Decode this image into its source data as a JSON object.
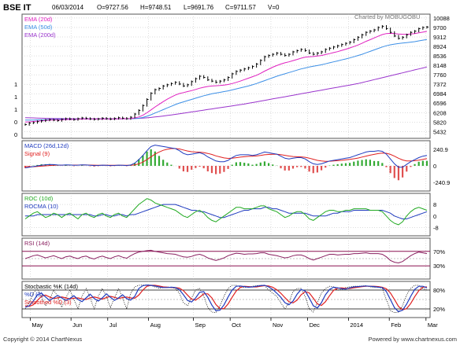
{
  "header": {
    "symbol": "BSE IT",
    "date": "06/03/2014",
    "open": "O=9727.56",
    "high": "H=9748.51",
    "low": "L=9691.76",
    "close": "C=9711.57",
    "volume": "V=0",
    "watermark": "Charted by MOBUGOBU"
  },
  "footer": {
    "copyright": "Copyright © 2014 ChartNexus",
    "powered": "Powered by www.chartnexus.com"
  },
  "colors": {
    "price": "#000000",
    "ema20": "#e020c0",
    "ema50": "#3c8fe6",
    "ema200": "#9933cc",
    "macd": "#1f3bbf",
    "signal": "#e02020",
    "hist_up": "#33aa33",
    "hist_down": "#e05050",
    "roc": "#22aa22",
    "rocma": "#1f3bbf",
    "rsi": "#8a2060",
    "stoch_k": "#000000",
    "stoch_pd": "#1f3bbf",
    "stoch_sd": "#e02020",
    "band_line": "#8a1050",
    "grid": "#bbbbbb",
    "frame": "#555555"
  },
  "x_axis": {
    "labels": [
      "May",
      "Jun",
      "Jul",
      "Aug",
      "Sep",
      "Oct",
      "Nov",
      "Dec",
      "2014",
      "Feb",
      "Mar"
    ],
    "label_positions": [
      0.02,
      0.12,
      0.21,
      0.31,
      0.42,
      0.51,
      0.61,
      0.7,
      0.8,
      0.9,
      0.99
    ]
  },
  "chart_data": [
    {
      "type": "line",
      "panel": "price",
      "legend": [
        "EMA (20d)",
        "EMA (50d)",
        "EMA (200d)"
      ],
      "y_tick_labels": [
        "10088",
        "9700",
        "9312",
        "8924",
        "8536",
        "8148",
        "7760",
        "7372",
        "6984",
        "6596",
        "6208",
        "5820",
        "5432"
      ],
      "left_tick_labels": [
        "1",
        "1",
        "1",
        "0",
        "0"
      ],
      "ylim": [
        5250,
        10150
      ],
      "price_close": [
        5720,
        5780,
        5800,
        5840,
        5870,
        5900,
        5920,
        5900,
        5880,
        5930,
        5960,
        5940,
        5920,
        5960,
        5990,
        5970,
        5950,
        5930,
        5950,
        5980,
        5960,
        5940,
        5970,
        6000,
        5980,
        5960,
        6020,
        6150,
        6300,
        6500,
        6750,
        7000,
        7150,
        7200,
        7300,
        7350,
        7400,
        7450,
        7380,
        7300,
        7350,
        7480,
        7600,
        7700,
        7650,
        7550,
        7500,
        7450,
        7500,
        7550,
        7650,
        7800,
        7900,
        7950,
        8000,
        8050,
        8100,
        8200,
        8350,
        8500,
        8550,
        8600,
        8650,
        8600,
        8550,
        8600,
        8700,
        8750,
        8800,
        8750,
        8650,
        8600,
        8650,
        8700,
        8800,
        8850,
        8900,
        8950,
        9000,
        9050,
        9100,
        9200,
        9300,
        9400,
        9500,
        9550,
        9600,
        9700,
        9750,
        9650,
        9500,
        9350,
        9250,
        9300,
        9400,
        9500,
        9550,
        9650,
        9700,
        9720
      ],
      "ema20": [
        5820,
        5830,
        5845,
        5860,
        5875,
        5890,
        5905,
        5910,
        5910,
        5915,
        5925,
        5930,
        5930,
        5935,
        5945,
        5950,
        5950,
        5948,
        5948,
        5952,
        5952,
        5950,
        5952,
        5957,
        5960,
        5960,
        5966,
        5990,
        6030,
        6100,
        6200,
        6320,
        6440,
        6550,
        6660,
        6760,
        6850,
        6930,
        6990,
        7030,
        7070,
        7110,
        7160,
        7210,
        7250,
        7280,
        7300,
        7310,
        7320,
        7340,
        7360,
        7400,
        7450,
        7500,
        7560,
        7620,
        7680,
        7740,
        7820,
        7910,
        7990,
        8070,
        8140,
        8200,
        8250,
        8290,
        8340,
        8390,
        8440,
        8480,
        8500,
        8510,
        8530,
        8550,
        8590,
        8630,
        8670,
        8710,
        8760,
        8810,
        8860,
        8920,
        8980,
        9050,
        9130,
        9200,
        9270,
        9340,
        9410,
        9450,
        9460,
        9450,
        9430,
        9420,
        9420,
        9430,
        9450,
        9480,
        9510,
        9540
      ],
      "ema50": [
        5900,
        5900,
        5905,
        5910,
        5915,
        5920,
        5925,
        5928,
        5930,
        5932,
        5935,
        5938,
        5940,
        5942,
        5945,
        5948,
        5950,
        5950,
        5950,
        5952,
        5952,
        5952,
        5953,
        5955,
        5956,
        5956,
        5958,
        5965,
        5980,
        6010,
        6060,
        6120,
        6190,
        6260,
        6330,
        6400,
        6470,
        6540,
        6600,
        6650,
        6700,
        6750,
        6800,
        6850,
        6900,
        6940,
        6980,
        7010,
        7040,
        7070,
        7100,
        7140,
        7180,
        7220,
        7260,
        7300,
        7350,
        7400,
        7460,
        7520,
        7580,
        7640,
        7700,
        7750,
        7800,
        7850,
        7900,
        7950,
        8000,
        8040,
        8080,
        8110,
        8140,
        8170,
        8210,
        8250,
        8290,
        8330,
        8370,
        8410,
        8450,
        8500,
        8550,
        8600,
        8660,
        8720,
        8780,
        8840,
        8900,
        8950,
        8990,
        9020,
        9040,
        9060,
        9080,
        9100,
        9120,
        9150,
        9180,
        9210
      ],
      "ema200": [
        6000,
        5995,
        5990,
        5985,
        5980,
        5976,
        5972,
        5968,
        5965,
        5962,
        5960,
        5958,
        5956,
        5955,
        5954,
        5953,
        5952,
        5951,
        5950,
        5950,
        5950,
        5951,
        5952,
        5953,
        5955,
        5957,
        5960,
        5965,
        5972,
        5982,
        5995,
        6010,
        6030,
        6050,
        6070,
        6090,
        6110,
        6135,
        6160,
        6185,
        6210,
        6235,
        6260,
        6285,
        6310,
        6335,
        6360,
        6385,
        6410,
        6435,
        6460,
        6485,
        6510,
        6535,
        6560,
        6590,
        6620,
        6650,
        6680,
        6710,
        6740,
        6770,
        6800,
        6830,
        6860,
        6890,
        6920,
        6950,
        6980,
        7010,
        7040,
        7070,
        7100,
        7130,
        7160,
        7190,
        7220,
        7250,
        7280,
        7310,
        7340,
        7370,
        7400,
        7440,
        7480,
        7520,
        7560,
        7600,
        7640,
        7680,
        7720,
        7760,
        7800,
        7840,
        7880,
        7920,
        7960,
        8000,
        8040,
        8080
      ]
    },
    {
      "type": "line",
      "panel": "macd",
      "legend": [
        "MACD (26d,12d)",
        "Signal (9)"
      ],
      "y_tick_labels": [
        "240.9",
        "0",
        "-240.9"
      ],
      "ylim": [
        -330,
        330
      ],
      "macd": [
        -30,
        -20,
        -10,
        0,
        10,
        15,
        20,
        18,
        12,
        10,
        15,
        12,
        8,
        10,
        15,
        12,
        8,
        4,
        6,
        10,
        8,
        4,
        6,
        10,
        8,
        5,
        12,
        40,
        90,
        150,
        220,
        280,
        300,
        290,
        280,
        270,
        260,
        250,
        220,
        180,
        160,
        170,
        180,
        190,
        170,
        130,
        100,
        70,
        60,
        60,
        80,
        120,
        150,
        160,
        160,
        160,
        150,
        160,
        180,
        200,
        190,
        180,
        170,
        140,
        110,
        100,
        110,
        120,
        120,
        100,
        60,
        30,
        20,
        30,
        50,
        70,
        80,
        90,
        100,
        110,
        120,
        140,
        160,
        180,
        200,
        210,
        210,
        220,
        210,
        170,
        100,
        30,
        -20,
        -20,
        20,
        60,
        90,
        120,
        140,
        150
      ],
      "signal": [
        -10,
        -12,
        -12,
        -8,
        -4,
        0,
        4,
        8,
        10,
        10,
        11,
        11,
        11,
        11,
        12,
        12,
        11,
        10,
        9,
        9,
        9,
        8,
        8,
        8,
        8,
        8,
        8,
        15,
        30,
        55,
        90,
        130,
        170,
        200,
        225,
        240,
        250,
        250,
        245,
        230,
        215,
        205,
        200,
        198,
        192,
        180,
        165,
        145,
        130,
        115,
        108,
        110,
        118,
        126,
        132,
        138,
        140,
        143,
        150,
        160,
        165,
        168,
        168,
        162,
        152,
        142,
        135,
        132,
        130,
        124,
        112,
        96,
        80,
        70,
        66,
        67,
        70,
        75,
        80,
        86,
        93,
        102,
        113,
        127,
        141,
        155,
        166,
        177,
        184,
        182,
        166,
        140,
        110,
        85,
        72,
        70,
        74,
        83,
        94,
        105
      ]
    },
    {
      "type": "line",
      "panel": "roc",
      "legend": [
        "ROC (10d)",
        "ROCMA (10)"
      ],
      "y_tick_labels": [
        "8",
        "0",
        "-8"
      ],
      "ylim": [
        -12,
        14
      ],
      "roc": [
        -2,
        0,
        2,
        3,
        1,
        -1,
        0,
        2,
        1,
        -1,
        1,
        2,
        0,
        -2,
        1,
        2,
        0,
        -1,
        1,
        2,
        0,
        -1,
        1,
        2,
        0,
        -1,
        2,
        5,
        8,
        10,
        12,
        11,
        9,
        8,
        7,
        6,
        5,
        4,
        2,
        0,
        -1,
        1,
        3,
        4,
        2,
        -1,
        -3,
        -4,
        -2,
        0,
        2,
        4,
        6,
        6,
        5,
        5,
        5,
        6,
        7,
        7,
        5,
        4,
        3,
        1,
        -1,
        0,
        2,
        3,
        3,
        1,
        -2,
        -3,
        -1,
        1,
        3,
        4,
        4,
        3,
        3,
        4,
        4,
        5,
        5,
        5,
        5,
        4,
        4,
        4,
        3,
        0,
        -3,
        -5,
        -6,
        -4,
        0,
        3,
        5,
        6,
        5,
        4
      ],
      "rocma": [
        0,
        0,
        0,
        1,
        1,
        1,
        1,
        1,
        1,
        1,
        1,
        1,
        1,
        1,
        1,
        1,
        1,
        0,
        0,
        1,
        1,
        0,
        0,
        1,
        1,
        0,
        1,
        1,
        2,
        3,
        4,
        5,
        6,
        7,
        8,
        8,
        8,
        8,
        7,
        6,
        5,
        4,
        4,
        3,
        3,
        2,
        1,
        0,
        -1,
        -1,
        0,
        1,
        2,
        3,
        4,
        4,
        5,
        5,
        5,
        6,
        6,
        5,
        5,
        4,
        3,
        2,
        2,
        2,
        2,
        2,
        1,
        0,
        0,
        0,
        0,
        1,
        2,
        2,
        3,
        3,
        3,
        4,
        4,
        4,
        4,
        4,
        4,
        4,
        4,
        3,
        2,
        0,
        -1,
        -2,
        -2,
        -1,
        0,
        1,
        2,
        3
      ]
    },
    {
      "type": "line",
      "panel": "rsi",
      "legend": [
        "RSI (14d)"
      ],
      "y_tick_labels": [
        "70%",
        "30%"
      ],
      "ylim": [
        0,
        100
      ],
      "bands": [
        70,
        50,
        30
      ],
      "rsi": [
        50,
        54,
        58,
        60,
        56,
        52,
        55,
        58,
        54,
        50,
        55,
        57,
        53,
        50,
        55,
        57,
        52,
        49,
        54,
        57,
        53,
        50,
        55,
        58,
        54,
        51,
        58,
        64,
        68,
        70,
        72,
        73,
        70,
        68,
        66,
        64,
        63,
        62,
        58,
        55,
        54,
        56,
        60,
        62,
        58,
        52,
        48,
        45,
        48,
        52,
        58,
        62,
        65,
        64,
        62,
        63,
        63,
        64,
        66,
        66,
        62,
        60,
        58,
        55,
        52,
        54,
        58,
        60,
        60,
        56,
        50,
        46,
        50,
        54,
        58,
        62,
        62,
        60,
        61,
        62,
        62,
        64,
        64,
        65,
        66,
        64,
        64,
        64,
        62,
        55,
        45,
        40,
        38,
        42,
        50,
        58,
        64,
        68,
        66,
        64
      ]
    },
    {
      "type": "line",
      "panel": "stochastic",
      "legend": [
        "Stochastic %K (14d)",
        "%D (3)",
        "Smoothed %D (3)"
      ],
      "y_tick_labels": [
        "80%",
        "20%"
      ],
      "ylim": [
        0,
        100
      ],
      "bands": [
        80,
        50,
        20
      ],
      "k": [
        20,
        40,
        70,
        85,
        60,
        30,
        50,
        80,
        60,
        25,
        55,
        80,
        50,
        20,
        60,
        85,
        55,
        20,
        60,
        85,
        60,
        25,
        55,
        85,
        55,
        20,
        70,
        90,
        95,
        96,
        96,
        94,
        90,
        85,
        88,
        90,
        88,
        85,
        70,
        40,
        30,
        55,
        80,
        85,
        60,
        25,
        10,
        8,
        30,
        60,
        85,
        95,
        95,
        90,
        88,
        90,
        92,
        94,
        95,
        95,
        80,
        70,
        60,
        40,
        20,
        40,
        75,
        85,
        85,
        60,
        20,
        10,
        40,
        70,
        85,
        92,
        90,
        80,
        82,
        88,
        90,
        92,
        92,
        93,
        94,
        90,
        88,
        90,
        85,
        50,
        15,
        8,
        10,
        30,
        65,
        85,
        95,
        95,
        85,
        80
      ],
      "pd": [
        25,
        30,
        45,
        65,
        70,
        58,
        47,
        55,
        63,
        55,
        47,
        53,
        62,
        50,
        43,
        55,
        67,
        53,
        45,
        55,
        68,
        57,
        47,
        55,
        65,
        53,
        48,
        60,
        85,
        94,
        96,
        95,
        93,
        90,
        88,
        88,
        89,
        88,
        81,
        65,
        47,
        42,
        55,
        73,
        75,
        57,
        32,
        14,
        16,
        33,
        58,
        80,
        92,
        93,
        91,
        89,
        90,
        92,
        94,
        95,
        90,
        82,
        70,
        57,
        40,
        33,
        45,
        67,
        82,
        77,
        55,
        30,
        23,
        40,
        65,
        82,
        89,
        87,
        84,
        83,
        87,
        90,
        91,
        92,
        93,
        92,
        91,
        89,
        88,
        75,
        50,
        24,
        11,
        16,
        35,
        60,
        82,
        92,
        92,
        87
      ],
      "sd": [
        30,
        28,
        33,
        47,
        60,
        64,
        58,
        53,
        55,
        58,
        55,
        52,
        54,
        55,
        52,
        50,
        55,
        58,
        55,
        51,
        56,
        60,
        57,
        53,
        56,
        58,
        55,
        54,
        64,
        80,
        92,
        95,
        95,
        93,
        90,
        89,
        88,
        88,
        86,
        78,
        64,
        51,
        48,
        57,
        68,
        68,
        55,
        34,
        21,
        21,
        36,
        57,
        77,
        88,
        92,
        91,
        90,
        90,
        92,
        94,
        93,
        89,
        81,
        70,
        56,
        43,
        39,
        48,
        65,
        75,
        71,
        54,
        36,
        31,
        43,
        62,
        79,
        86,
        87,
        85,
        85,
        87,
        89,
        91,
        92,
        92,
        92,
        91,
        89,
        84,
        71,
        50,
        28,
        17,
        21,
        37,
        59,
        78,
        89,
        90
      ]
    }
  ]
}
